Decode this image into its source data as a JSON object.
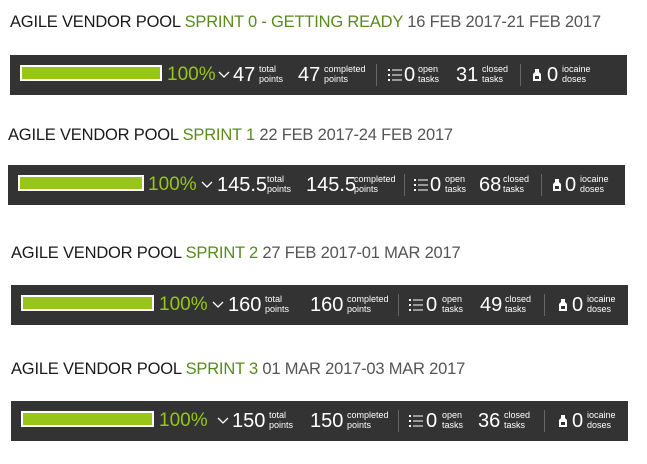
{
  "colors": {
    "accent": "#97c618",
    "sprint_name": "#5a8a1e",
    "bar_bg": "#333333"
  },
  "sprints": [
    {
      "team": "AGILE VENDOR POOL",
      "name": "SPRINT 0 - GETTING READY",
      "dates": "16 FEB 2017-21 FEB 2017",
      "progress": 1.0,
      "percent_label": "100%",
      "total_points": "47",
      "total_label_1": "total",
      "total_label_2": "points",
      "completed_points": "47",
      "completed_label_1": "completed",
      "completed_label_2": "points",
      "open_tasks": "0",
      "open_label_1": "open",
      "open_label_2": "tasks",
      "closed_tasks": "31",
      "closed_label_1": "closed",
      "closed_label_2": "tasks",
      "iocaine_doses": "0",
      "iocaine_label_1": "iocaine",
      "iocaine_label_2": "doses"
    },
    {
      "team": "AGILE VENDOR POOL",
      "name": "SPRINT 1",
      "dates": "22 FEB 2017-24 FEB 2017",
      "progress": 1.0,
      "percent_label": "100%",
      "total_points": "145.5",
      "total_label_1": "total",
      "total_label_2": "points",
      "completed_points": "145.5",
      "completed_label_1": "completed",
      "completed_label_2": "points",
      "open_tasks": "0",
      "open_label_1": "open",
      "open_label_2": "tasks",
      "closed_tasks": "68",
      "closed_label_1": "closed",
      "closed_label_2": "tasks",
      "iocaine_doses": "0",
      "iocaine_label_1": "iocaine",
      "iocaine_label_2": "doses"
    },
    {
      "team": "AGILE VENDOR POOL",
      "name": "SPRINT 2",
      "dates": "27 FEB 2017-01 MAR 2017",
      "progress": 1.0,
      "percent_label": "100%",
      "total_points": "160",
      "total_label_1": "total",
      "total_label_2": "points",
      "completed_points": "160",
      "completed_label_1": "completed",
      "completed_label_2": "points",
      "open_tasks": "0",
      "open_label_1": "open",
      "open_label_2": "tasks",
      "closed_tasks": "49",
      "closed_label_1": "closed",
      "closed_label_2": "tasks",
      "iocaine_doses": "0",
      "iocaine_label_1": "iocaine",
      "iocaine_label_2": "doses"
    },
    {
      "team": "AGILE VENDOR POOL",
      "name": "SPRINT 3",
      "dates": "01 MAR 2017-03 MAR 2017",
      "progress": 1.0,
      "percent_label": "100%",
      "total_points": "150",
      "total_label_1": "total",
      "total_label_2": "points",
      "completed_points": "150",
      "completed_label_1": "completed",
      "completed_label_2": "points",
      "open_tasks": "0",
      "open_label_1": "open",
      "open_label_2": "tasks",
      "closed_tasks": "36",
      "closed_label_1": "closed",
      "closed_label_2": "tasks",
      "iocaine_doses": "0",
      "iocaine_label_1": "iocaine",
      "iocaine_label_2": "doses"
    }
  ]
}
